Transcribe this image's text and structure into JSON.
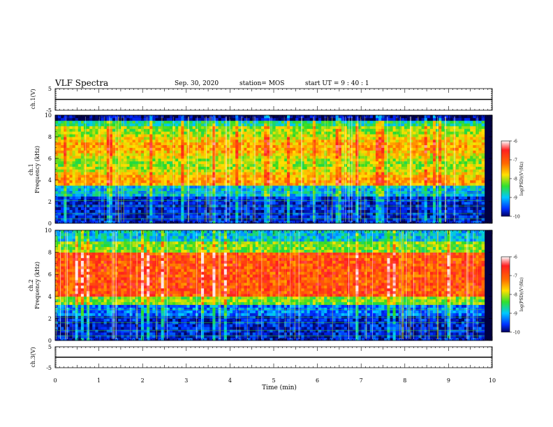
{
  "header": {
    "title": "VLF Spectra",
    "date": "Sep. 30, 2020",
    "station": "station= MOS",
    "start": "start  UT =   9 : 40 : 1"
  },
  "chart_data": [
    {
      "type": "line",
      "panel": "ch1-waveform",
      "ylabel": "ch.1(V)",
      "ylim": [
        -5,
        5
      ],
      "y_ticks": [
        "5",
        "-5"
      ],
      "xlim": [
        0,
        10
      ],
      "series": [
        {
          "values": [
            0,
            0
          ]
        }
      ]
    },
    {
      "type": "heatmap",
      "panel": "ch1-spectrogram",
      "ylabel": "ch.1\nFrequency (kHz)",
      "ylabel_lines": [
        "ch.1",
        "Frequency (kHz)"
      ],
      "ylim": [
        0,
        10
      ],
      "y_ticks": [
        "0",
        "2",
        "4",
        "6",
        "8",
        "10"
      ],
      "xlim": [
        0,
        10
      ],
      "colorbar": {
        "label": "log(PSD)(V²/Hz)",
        "range": [
          -10,
          -6
        ],
        "ticks": [
          "-6",
          "-7",
          "-8",
          "-9",
          "-10"
        ]
      }
    },
    {
      "type": "heatmap",
      "panel": "ch2-spectrogram",
      "ylabel": "ch.2\nFrequency (kHz)",
      "ylabel_lines": [
        "ch.2",
        "Frequency (kHz)"
      ],
      "ylim": [
        0,
        10
      ],
      "y_ticks": [
        "0",
        "2",
        "4",
        "6",
        "8",
        "10"
      ],
      "xlim": [
        0,
        10
      ],
      "colorbar": {
        "label": "log(PSD)(V²/Hz)",
        "range": [
          -10,
          -6
        ],
        "ticks": [
          "-6",
          "-7",
          "-8",
          "-9",
          "-10"
        ]
      }
    },
    {
      "type": "line",
      "panel": "ch3-waveform",
      "ylabel": "ch.3(V)",
      "ylim": [
        -5,
        5
      ],
      "y_ticks": [
        "5",
        "-5"
      ],
      "xlim": [
        0,
        10
      ],
      "series": [
        {
          "values": [
            0,
            0
          ]
        }
      ]
    }
  ],
  "x_axis": {
    "label": "Time (min)",
    "ticks": [
      "0",
      "1",
      "2",
      "3",
      "4",
      "5",
      "6",
      "7",
      "8",
      "9",
      "10"
    ]
  }
}
